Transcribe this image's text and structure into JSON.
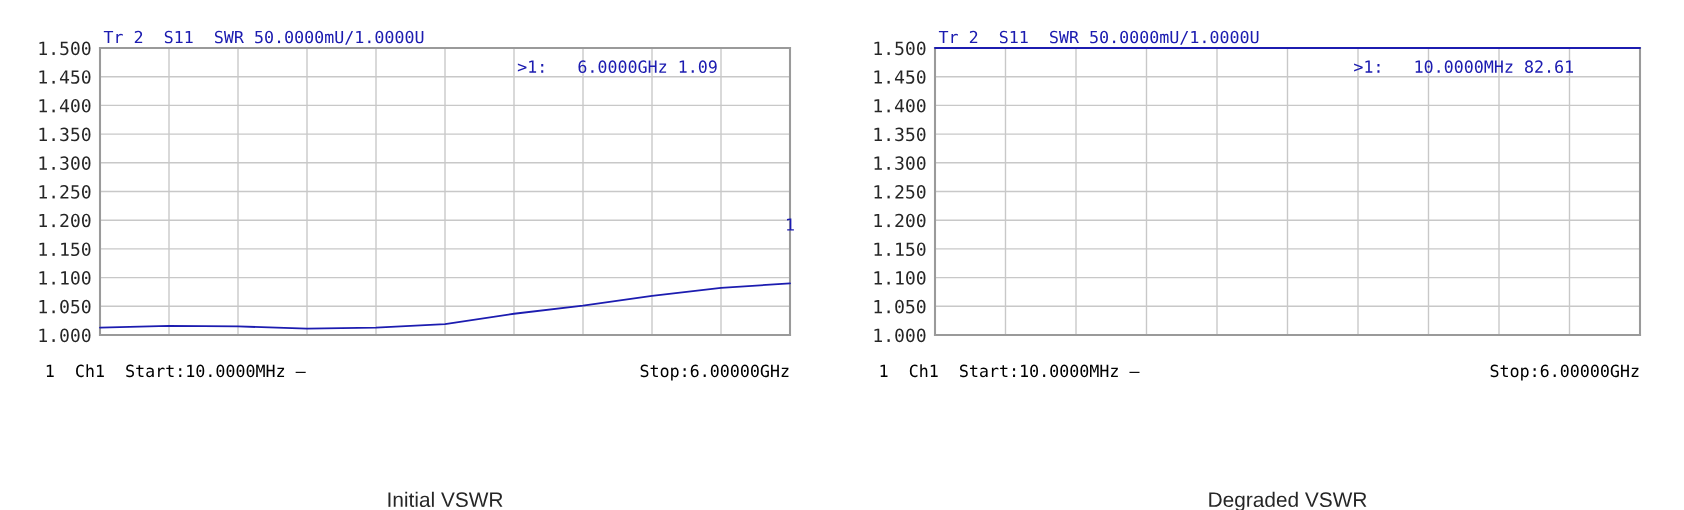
{
  "chart_data": [
    {
      "type": "line",
      "title": "Initial VSWR",
      "subtitle": "Tr 2  S11  SWR 50.0000mU/1.0000U",
      "categories": [
        null,
        null,
        null,
        null,
        null,
        null,
        null,
        null,
        null,
        null,
        null
      ],
      "series": [
        {
          "color": "#1c1cb0",
          "values": [
            1.013,
            1.016,
            1.015,
            1.011,
            1.013,
            1.019,
            1.037,
            1.051,
            1.068,
            1.082,
            1.09
          ]
        }
      ],
      "ylim": [
        1.0,
        1.5
      ],
      "yticks": [
        {
          "value": 1.0,
          "label": "1.000"
        },
        {
          "value": 1.05,
          "label": "1.050"
        },
        {
          "value": 1.1,
          "label": "1.100"
        },
        {
          "value": 1.15,
          "label": "1.150"
        },
        {
          "value": 1.2,
          "label": "1.200"
        },
        {
          "value": 1.25,
          "label": "1.250"
        },
        {
          "value": 1.3,
          "label": "1.300"
        },
        {
          "value": 1.35,
          "label": "1.350"
        },
        {
          "value": 1.4,
          "label": "1.400"
        },
        {
          "value": 1.45,
          "label": "1.450"
        },
        {
          "value": 1.5,
          "label": "1.500"
        }
      ],
      "tick_labels": "y",
      "grid": true,
      "annotations": [
        ">1:   6.0000GHz 1.09",
        "1  Ch1  Start:10.0000MHz —",
        "Stop:6.00000GHz",
        "1"
      ]
    },
    {
      "type": "line",
      "title": "Degraded VSWR",
      "subtitle": "Tr 2  S11  SWR 50.0000mU/1.0000U",
      "categories": [
        null,
        null,
        null,
        null,
        null,
        null,
        null,
        null,
        null,
        null,
        null
      ],
      "series": [
        {
          "color": "#1c1cb0",
          "values": [
            1.5,
            1.5,
            1.5,
            1.5,
            1.5,
            1.5,
            1.5,
            1.5,
            1.5,
            1.5,
            1.5
          ]
        }
      ],
      "ylim": [
        1.0,
        1.5
      ],
      "yticks": [
        {
          "value": 1.0,
          "label": "1.000"
        },
        {
          "value": 1.05,
          "label": "1.050"
        },
        {
          "value": 1.1,
          "label": "1.100"
        },
        {
          "value": 1.15,
          "label": "1.150"
        },
        {
          "value": 1.2,
          "label": "1.200"
        },
        {
          "value": 1.25,
          "label": "1.250"
        },
        {
          "value": 1.3,
          "label": "1.300"
        },
        {
          "value": 1.35,
          "label": "1.350"
        },
        {
          "value": 1.4,
          "label": "1.400"
        },
        {
          "value": 1.45,
          "label": "1.450"
        },
        {
          "value": 1.5,
          "label": "1.500"
        }
      ],
      "tick_labels": "y",
      "grid": true,
      "annotations": [
        ">1:   10.0000MHz 82.61",
        "1  Ch1  Start:10.0000MHz —",
        "Stop:6.00000GHz"
      ]
    }
  ]
}
